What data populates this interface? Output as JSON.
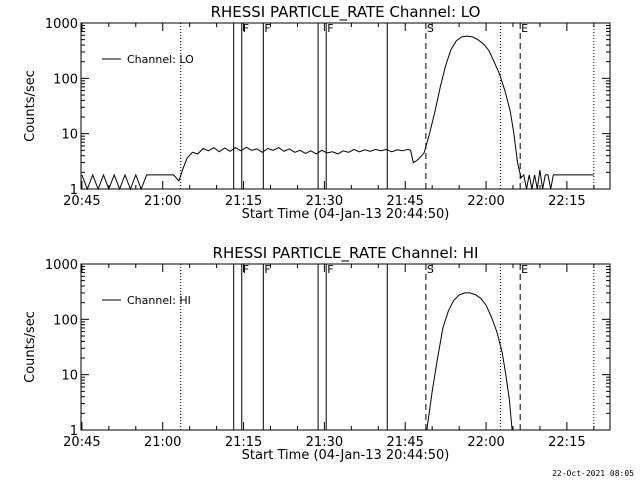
{
  "footer_date": "22-Oct-2021 08:05",
  "chart_data": [
    {
      "type": "line",
      "title": "RHESSI PARTICLE_RATE Channel: LO",
      "xlabel": "Start Time (04-Jan-13 20:44:50)",
      "ylabel": "Counts/sec",
      "yscale": "log",
      "xlim": [
        "20:44:50",
        "22:23:00"
      ],
      "ylim": [
        1,
        1000
      ],
      "xticks": [
        "20:45",
        "21:00",
        "21:15",
        "21:30",
        "21:45",
        "22:00",
        "22:15"
      ],
      "yticks": [
        "1",
        "10",
        "100",
        "1000"
      ],
      "legend": {
        "position": "top-left",
        "entries": [
          "Channel: LO"
        ]
      },
      "markers": [
        {
          "time": "21:03:20",
          "style": "dotted",
          "label": ""
        },
        {
          "time": "21:13:10",
          "style": "solid",
          "label": ""
        },
        {
          "time": "21:14:40",
          "style": "solid",
          "label": "F"
        },
        {
          "time": "21:18:40",
          "style": "solid",
          "label": "F"
        },
        {
          "time": "21:28:50",
          "style": "solid",
          "label": ""
        },
        {
          "time": "21:30:20",
          "style": "solid",
          "label": "F"
        },
        {
          "time": "21:41:40",
          "style": "solid",
          "label": ""
        },
        {
          "time": "21:48:50",
          "style": "dashed",
          "label": "S"
        },
        {
          "time": "22:02:40",
          "style": "dotted",
          "label": ""
        },
        {
          "time": "22:06:20",
          "style": "dashed",
          "label": "E"
        },
        {
          "time": "22:20:00",
          "style": "dotted",
          "label": ""
        }
      ],
      "series": [
        {
          "name": "Channel: LO",
          "points": [
            [
              "20:45:00",
              1.8
            ],
            [
              "20:46:00",
              1
            ],
            [
              "20:47:00",
              1.8
            ],
            [
              "20:48:00",
              1
            ],
            [
              "20:49:00",
              1.8
            ],
            [
              "20:50:00",
              1
            ],
            [
              "20:51:00",
              1.8
            ],
            [
              "20:52:00",
              1
            ],
            [
              "20:53:00",
              1.8
            ],
            [
              "20:54:00",
              1
            ],
            [
              "20:55:00",
              1.8
            ],
            [
              "20:56:00",
              1
            ],
            [
              "20:57:00",
              1.8
            ],
            [
              "20:58:00",
              1.8
            ],
            [
              "20:59:00",
              1.8
            ],
            [
              "21:00:00",
              1.8
            ],
            [
              "21:01:00",
              1.8
            ],
            [
              "21:02:00",
              1.8
            ],
            [
              "21:03:00",
              1.4
            ],
            [
              "21:03:40",
              2.2
            ],
            [
              "21:04:30",
              3.6
            ],
            [
              "21:05:30",
              4.6
            ],
            [
              "21:06:30",
              4.3
            ],
            [
              "21:07:30",
              5.4
            ],
            [
              "21:08:30",
              4.9
            ],
            [
              "21:09:30",
              5.6
            ],
            [
              "21:10:30",
              4.7
            ],
            [
              "21:11:30",
              5.5
            ],
            [
              "21:12:30",
              4.8
            ],
            [
              "21:13:30",
              5.6
            ],
            [
              "21:14:30",
              4.9
            ],
            [
              "21:15:30",
              5.7
            ],
            [
              "21:16:30",
              5.0
            ],
            [
              "21:17:30",
              5.3
            ],
            [
              "21:18:30",
              4.6
            ],
            [
              "21:19:30",
              5.4
            ],
            [
              "21:20:30",
              5.0
            ],
            [
              "21:21:30",
              5.6
            ],
            [
              "21:22:30",
              4.8
            ],
            [
              "21:23:30",
              5.3
            ],
            [
              "21:24:30",
              4.6
            ],
            [
              "21:25:30",
              5.0
            ],
            [
              "21:26:30",
              4.4
            ],
            [
              "21:27:30",
              4.9
            ],
            [
              "21:28:30",
              4.3
            ],
            [
              "21:29:30",
              5.0
            ],
            [
              "21:30:30",
              4.5
            ],
            [
              "21:31:30",
              4.7
            ],
            [
              "21:32:30",
              4.3
            ],
            [
              "21:33:30",
              4.9
            ],
            [
              "21:34:30",
              4.6
            ],
            [
              "21:35:30",
              5.2
            ],
            [
              "21:36:30",
              4.7
            ],
            [
              "21:37:30",
              5.1
            ],
            [
              "21:38:30",
              4.8
            ],
            [
              "21:39:30",
              5.2
            ],
            [
              "21:40:30",
              4.9
            ],
            [
              "21:41:30",
              5.2
            ],
            [
              "21:42:30",
              4.7
            ],
            [
              "21:43:30",
              5.1
            ],
            [
              "21:44:30",
              4.9
            ],
            [
              "21:45:30",
              5.2
            ],
            [
              "21:46:00",
              5.0
            ],
            [
              "21:46:30",
              3.0
            ],
            [
              "21:47:00",
              3.2
            ],
            [
              "21:47:30",
              3.5
            ],
            [
              "21:48:30",
              4.5
            ],
            [
              "21:49:30",
              10
            ],
            [
              "21:50:30",
              25
            ],
            [
              "21:51:30",
              70
            ],
            [
              "21:52:30",
              170
            ],
            [
              "21:53:30",
              330
            ],
            [
              "21:54:30",
              480
            ],
            [
              "21:55:30",
              560
            ],
            [
              "21:56:30",
              580
            ],
            [
              "21:57:30",
              560
            ],
            [
              "21:58:30",
              500
            ],
            [
              "21:59:30",
              420
            ],
            [
              "22:00:30",
              320
            ],
            [
              "22:01:30",
              200
            ],
            [
              "22:02:30",
              120
            ],
            [
              "22:03:30",
              60
            ],
            [
              "22:04:30",
              25
            ],
            [
              "22:05:10",
              10
            ],
            [
              "22:05:50",
              3.0
            ],
            [
              "22:06:30",
              1.6
            ],
            [
              "22:07:00",
              1.8
            ],
            [
              "22:07:30",
              1
            ],
            [
              "22:08:00",
              1.8
            ],
            [
              "22:08:30",
              1
            ],
            [
              "22:09:00",
              1.8
            ],
            [
              "22:09:30",
              1
            ],
            [
              "22:10:00",
              2.2
            ],
            [
              "22:10:30",
              1
            ],
            [
              "22:11:00",
              1.8
            ],
            [
              "22:11:30",
              1.8
            ],
            [
              "22:12:00",
              1
            ],
            [
              "22:12:30",
              1.8
            ],
            [
              "22:13:00",
              1.8
            ],
            [
              "22:14:00",
              1.8
            ],
            [
              "22:15:00",
              1.8
            ],
            [
              "22:16:00",
              1.8
            ],
            [
              "22:17:00",
              1.8
            ],
            [
              "22:18:00",
              1.8
            ],
            [
              "22:19:00",
              1.8
            ],
            [
              "22:20:00",
              1.8
            ]
          ]
        }
      ]
    },
    {
      "type": "line",
      "title": "RHESSI PARTICLE_RATE Channel: HI",
      "xlabel": "Start Time (04-Jan-13 20:44:50)",
      "ylabel": "Counts/sec",
      "yscale": "log",
      "xlim": [
        "20:44:50",
        "22:23:00"
      ],
      "ylim": [
        1,
        1000
      ],
      "xticks": [
        "20:45",
        "21:00",
        "21:15",
        "21:30",
        "21:45",
        "22:00",
        "22:15"
      ],
      "yticks": [
        "1",
        "10",
        "100",
        "1000"
      ],
      "legend": {
        "position": "top-left",
        "entries": [
          "Channel: HI"
        ]
      },
      "markers": [
        {
          "time": "21:03:20",
          "style": "dotted",
          "label": ""
        },
        {
          "time": "21:13:10",
          "style": "solid",
          "label": ""
        },
        {
          "time": "21:14:40",
          "style": "solid",
          "label": "F"
        },
        {
          "time": "21:18:40",
          "style": "solid",
          "label": "F"
        },
        {
          "time": "21:28:50",
          "style": "solid",
          "label": ""
        },
        {
          "time": "21:30:20",
          "style": "solid",
          "label": "F"
        },
        {
          "time": "21:41:40",
          "style": "solid",
          "label": ""
        },
        {
          "time": "21:48:50",
          "style": "dashed",
          "label": "S"
        },
        {
          "time": "22:02:40",
          "style": "dotted",
          "label": ""
        },
        {
          "time": "22:06:20",
          "style": "dashed",
          "label": "E"
        },
        {
          "time": "22:20:00",
          "style": "dotted",
          "label": ""
        }
      ],
      "series": [
        {
          "name": "Channel: HI",
          "points": [
            [
              "21:49:00",
              1
            ],
            [
              "21:50:00",
              5
            ],
            [
              "21:51:00",
              20
            ],
            [
              "21:52:00",
              70
            ],
            [
              "21:53:00",
              140
            ],
            [
              "21:54:00",
              220
            ],
            [
              "21:55:00",
              275
            ],
            [
              "21:56:00",
              300
            ],
            [
              "21:57:00",
              300
            ],
            [
              "21:58:00",
              280
            ],
            [
              "21:59:00",
              240
            ],
            [
              "22:00:00",
              180
            ],
            [
              "22:01:00",
              110
            ],
            [
              "22:02:00",
              60
            ],
            [
              "22:03:00",
              25
            ],
            [
              "22:03:40",
              10
            ],
            [
              "22:04:20",
              3.5
            ],
            [
              "22:04:50",
              1
            ]
          ]
        }
      ]
    }
  ]
}
